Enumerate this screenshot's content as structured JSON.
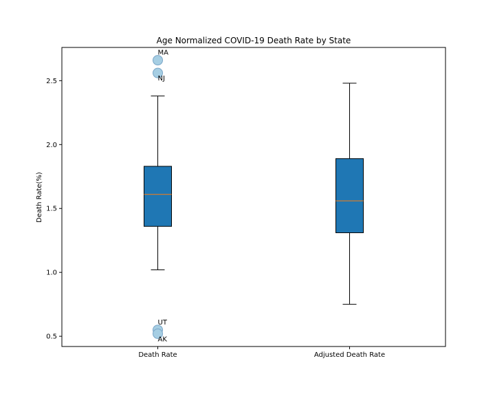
{
  "chart_data": {
    "type": "box",
    "title": "Age Normalized COVID-19 Death Rate by State",
    "xlabel": "",
    "ylabel": "Death Rate(%)",
    "categories": [
      "Death Rate",
      "Adjusted Death Rate"
    ],
    "ylim": [
      0.42,
      2.76
    ],
    "yticks": [
      "0.5",
      "1.0",
      "1.5",
      "2.0",
      "2.5"
    ],
    "grid": false,
    "box_color": "#1f77b4",
    "median_color": "#ff7f0e",
    "outlier_color": "#a6cee3",
    "series": [
      {
        "category": "Death Rate",
        "whisker_low": 1.02,
        "q1": 1.36,
        "median": 1.61,
        "q3": 1.83,
        "whisker_high": 2.38,
        "outliers": [
          {
            "label": "MA",
            "value": 2.66
          },
          {
            "label": "NJ",
            "value": 2.56
          },
          {
            "label": "UT",
            "value": 0.55
          },
          {
            "label": "AK",
            "value": 0.52
          }
        ]
      },
      {
        "category": "Adjusted Death Rate",
        "whisker_low": 0.75,
        "q1": 1.31,
        "median": 1.56,
        "q3": 1.89,
        "whisker_high": 2.48,
        "outliers": []
      }
    ]
  }
}
